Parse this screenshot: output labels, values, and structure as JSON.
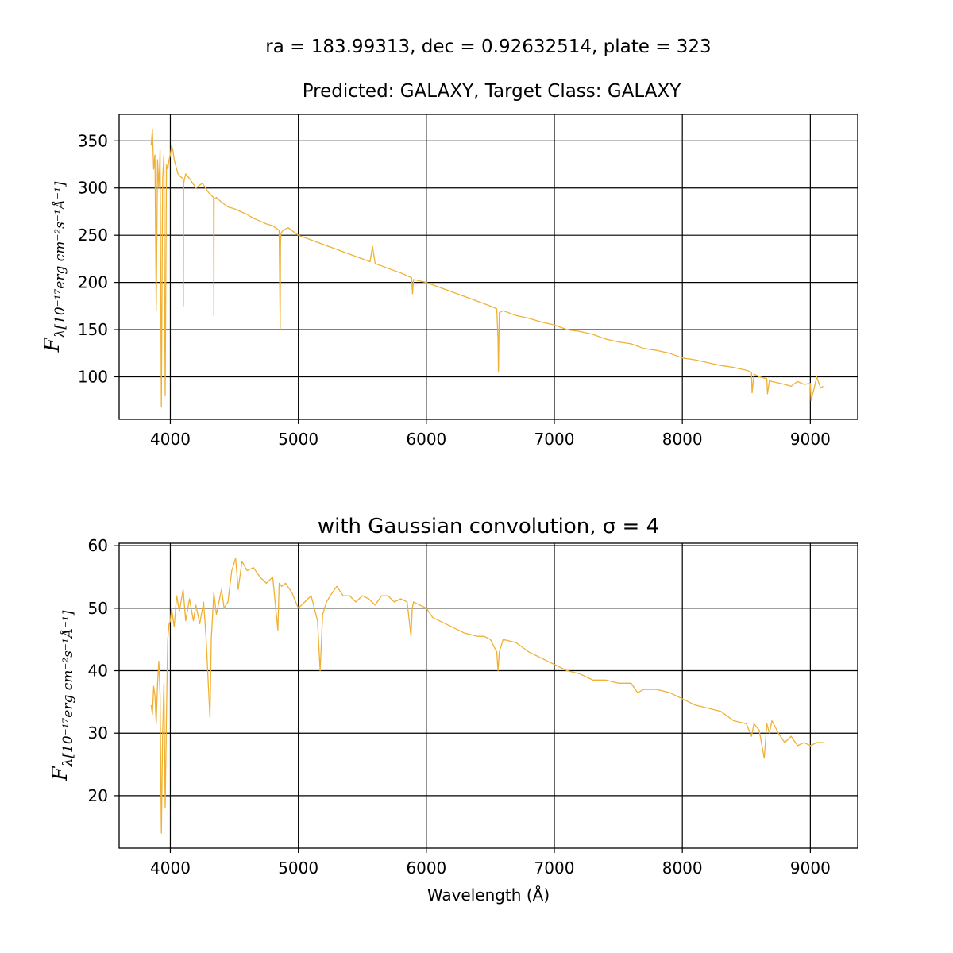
{
  "figure": {
    "suptitle": "ra = 183.99313, dec = 0.92632514, plate = 323",
    "line_color": "#f0b034"
  },
  "chart_data": [
    {
      "type": "line",
      "title": "Predicted: GALAXY, Target Class: GALAXY",
      "xlabel": "",
      "ylabel_main": "F",
      "ylabel_sub": "λ[10⁻¹⁷erg cm⁻²s⁻¹Å⁻¹]",
      "xlim": [
        3600,
        9370
      ],
      "ylim": [
        55,
        378
      ],
      "xticks": [
        4000,
        5000,
        6000,
        7000,
        8000,
        9000
      ],
      "yticks": [
        100,
        150,
        200,
        250,
        300,
        350
      ],
      "grid": true,
      "series": [
        {
          "x": [
            3850,
            3860,
            3870,
            3880,
            3890,
            3900,
            3910,
            3920,
            3930,
            3940,
            3950,
            3960,
            3970,
            3980,
            3990,
            4000,
            4010,
            4020,
            4030,
            4040,
            4050,
            4060,
            4080,
            4100,
            4102,
            4104,
            4120,
            4150,
            4200,
            4250,
            4300,
            4338,
            4340,
            4342,
            4360,
            4400,
            4450,
            4500,
            4550,
            4600,
            4650,
            4700,
            4750,
            4800,
            4850,
            4858,
            4861,
            4864,
            4880,
            4920,
            5000,
            5100,
            5200,
            5300,
            5400,
            5500,
            5560,
            5580,
            5600,
            5700,
            5800,
            5885,
            5892,
            5900,
            6000,
            6100,
            6200,
            6300,
            6400,
            6500,
            6550,
            6560,
            6563,
            6570,
            6600,
            6700,
            6800,
            6900,
            7000,
            7100,
            7200,
            7300,
            7400,
            7500,
            7600,
            7700,
            7800,
            7900,
            8000,
            8100,
            8200,
            8300,
            8400,
            8500,
            8540,
            8545,
            8560,
            8600,
            8660,
            8665,
            8680,
            8700,
            8800,
            8850,
            8900,
            8950,
            9000,
            9005,
            9030,
            9050,
            9080,
            9100
          ],
          "values": [
            345,
            362,
            320,
            335,
            170,
            330,
            300,
            340,
            68,
            310,
            335,
            80,
            325,
            320,
            330,
            335,
            345,
            340,
            330,
            325,
            320,
            315,
            312,
            310,
            175,
            305,
            315,
            310,
            300,
            305,
            295,
            290,
            165,
            288,
            290,
            285,
            280,
            278,
            275,
            272,
            268,
            265,
            262,
            260,
            255,
            150,
            240,
            252,
            255,
            258,
            250,
            245,
            240,
            235,
            230,
            225,
            222,
            238,
            220,
            215,
            210,
            205,
            188,
            203,
            200,
            195,
            190,
            185,
            180,
            175,
            172,
            140,
            105,
            168,
            170,
            165,
            162,
            158,
            155,
            150,
            148,
            145,
            140,
            137,
            135,
            130,
            128,
            125,
            120,
            118,
            115,
            112,
            110,
            107,
            105,
            83,
            103,
            100,
            98,
            82,
            96,
            95,
            92,
            90,
            95,
            92,
            93,
            75,
            88,
            100,
            88,
            90
          ]
        }
      ]
    },
    {
      "type": "line",
      "title": "with Gaussian convolution, σ = 4",
      "xlabel": "Wavelength (Å)",
      "ylabel_main": "F",
      "ylabel_sub": "λ[10⁻¹⁷erg cm⁻²s⁻¹Å⁻¹]",
      "xlim": [
        3600,
        9370
      ],
      "ylim": [
        11.6,
        60.4
      ],
      "xticks": [
        4000,
        5000,
        6000,
        7000,
        8000,
        9000
      ],
      "yticks": [
        20,
        30,
        40,
        50,
        60
      ],
      "grid": true,
      "series": [
        {
          "x": [
            3850,
            3860,
            3870,
            3880,
            3890,
            3900,
            3910,
            3920,
            3930,
            3940,
            3950,
            3960,
            3970,
            3980,
            3990,
            4000,
            4010,
            4030,
            4050,
            4070,
            4100,
            4120,
            4150,
            4180,
            4200,
            4230,
            4260,
            4280,
            4300,
            4310,
            4320,
            4340,
            4360,
            4400,
            4420,
            4450,
            4480,
            4510,
            4530,
            4560,
            4600,
            4650,
            4700,
            4750,
            4800,
            4840,
            4850,
            4870,
            4900,
            4950,
            5000,
            5050,
            5100,
            5150,
            5170,
            5190,
            5220,
            5250,
            5300,
            5350,
            5400,
            5450,
            5500,
            5550,
            5600,
            5650,
            5700,
            5750,
            5800,
            5850,
            5880,
            5890,
            5900,
            5950,
            6000,
            6050,
            6100,
            6200,
            6300,
            6400,
            6450,
            6500,
            6550,
            6560,
            6570,
            6600,
            6700,
            6800,
            6900,
            7000,
            7100,
            7200,
            7300,
            7400,
            7500,
            7600,
            7650,
            7700,
            7800,
            7900,
            8000,
            8100,
            8200,
            8300,
            8400,
            8500,
            8540,
            8560,
            8600,
            8640,
            8660,
            8680,
            8700,
            8750,
            8800,
            8850,
            8900,
            8950,
            9000,
            9050,
            9100
          ],
          "values": [
            34.5,
            33,
            37.5,
            36,
            31.5,
            38,
            41.5,
            36,
            14,
            30,
            38,
            18,
            33,
            45,
            47.5,
            48,
            50,
            47,
            52,
            49.5,
            53,
            48,
            51.5,
            48,
            50.5,
            47.5,
            51,
            45,
            36.5,
            32.5,
            45,
            52.5,
            49,
            53,
            50,
            51,
            56,
            58,
            53,
            57.5,
            56,
            56.5,
            55,
            54,
            55,
            46.5,
            54,
            53.5,
            54,
            52.5,
            50,
            51,
            52,
            48,
            40,
            49,
            51,
            52,
            53.5,
            52,
            52,
            51,
            52,
            51.5,
            50.5,
            52,
            52,
            51,
            51.5,
            51,
            45.5,
            50,
            51,
            50.5,
            50,
            48.5,
            48,
            47,
            46,
            45.5,
            45.5,
            45,
            43,
            40,
            43,
            45,
            44.5,
            43,
            42,
            41,
            40,
            39.5,
            38.5,
            38.5,
            38,
            38,
            36.5,
            37,
            37,
            36.5,
            35.5,
            34.5,
            34,
            33.5,
            32,
            31.5,
            29.5,
            31.5,
            30.5,
            26,
            31.5,
            30,
            32,
            30,
            28.5,
            29.5,
            28,
            28.5,
            28,
            28.5,
            28.5
          ]
        }
      ]
    }
  ]
}
